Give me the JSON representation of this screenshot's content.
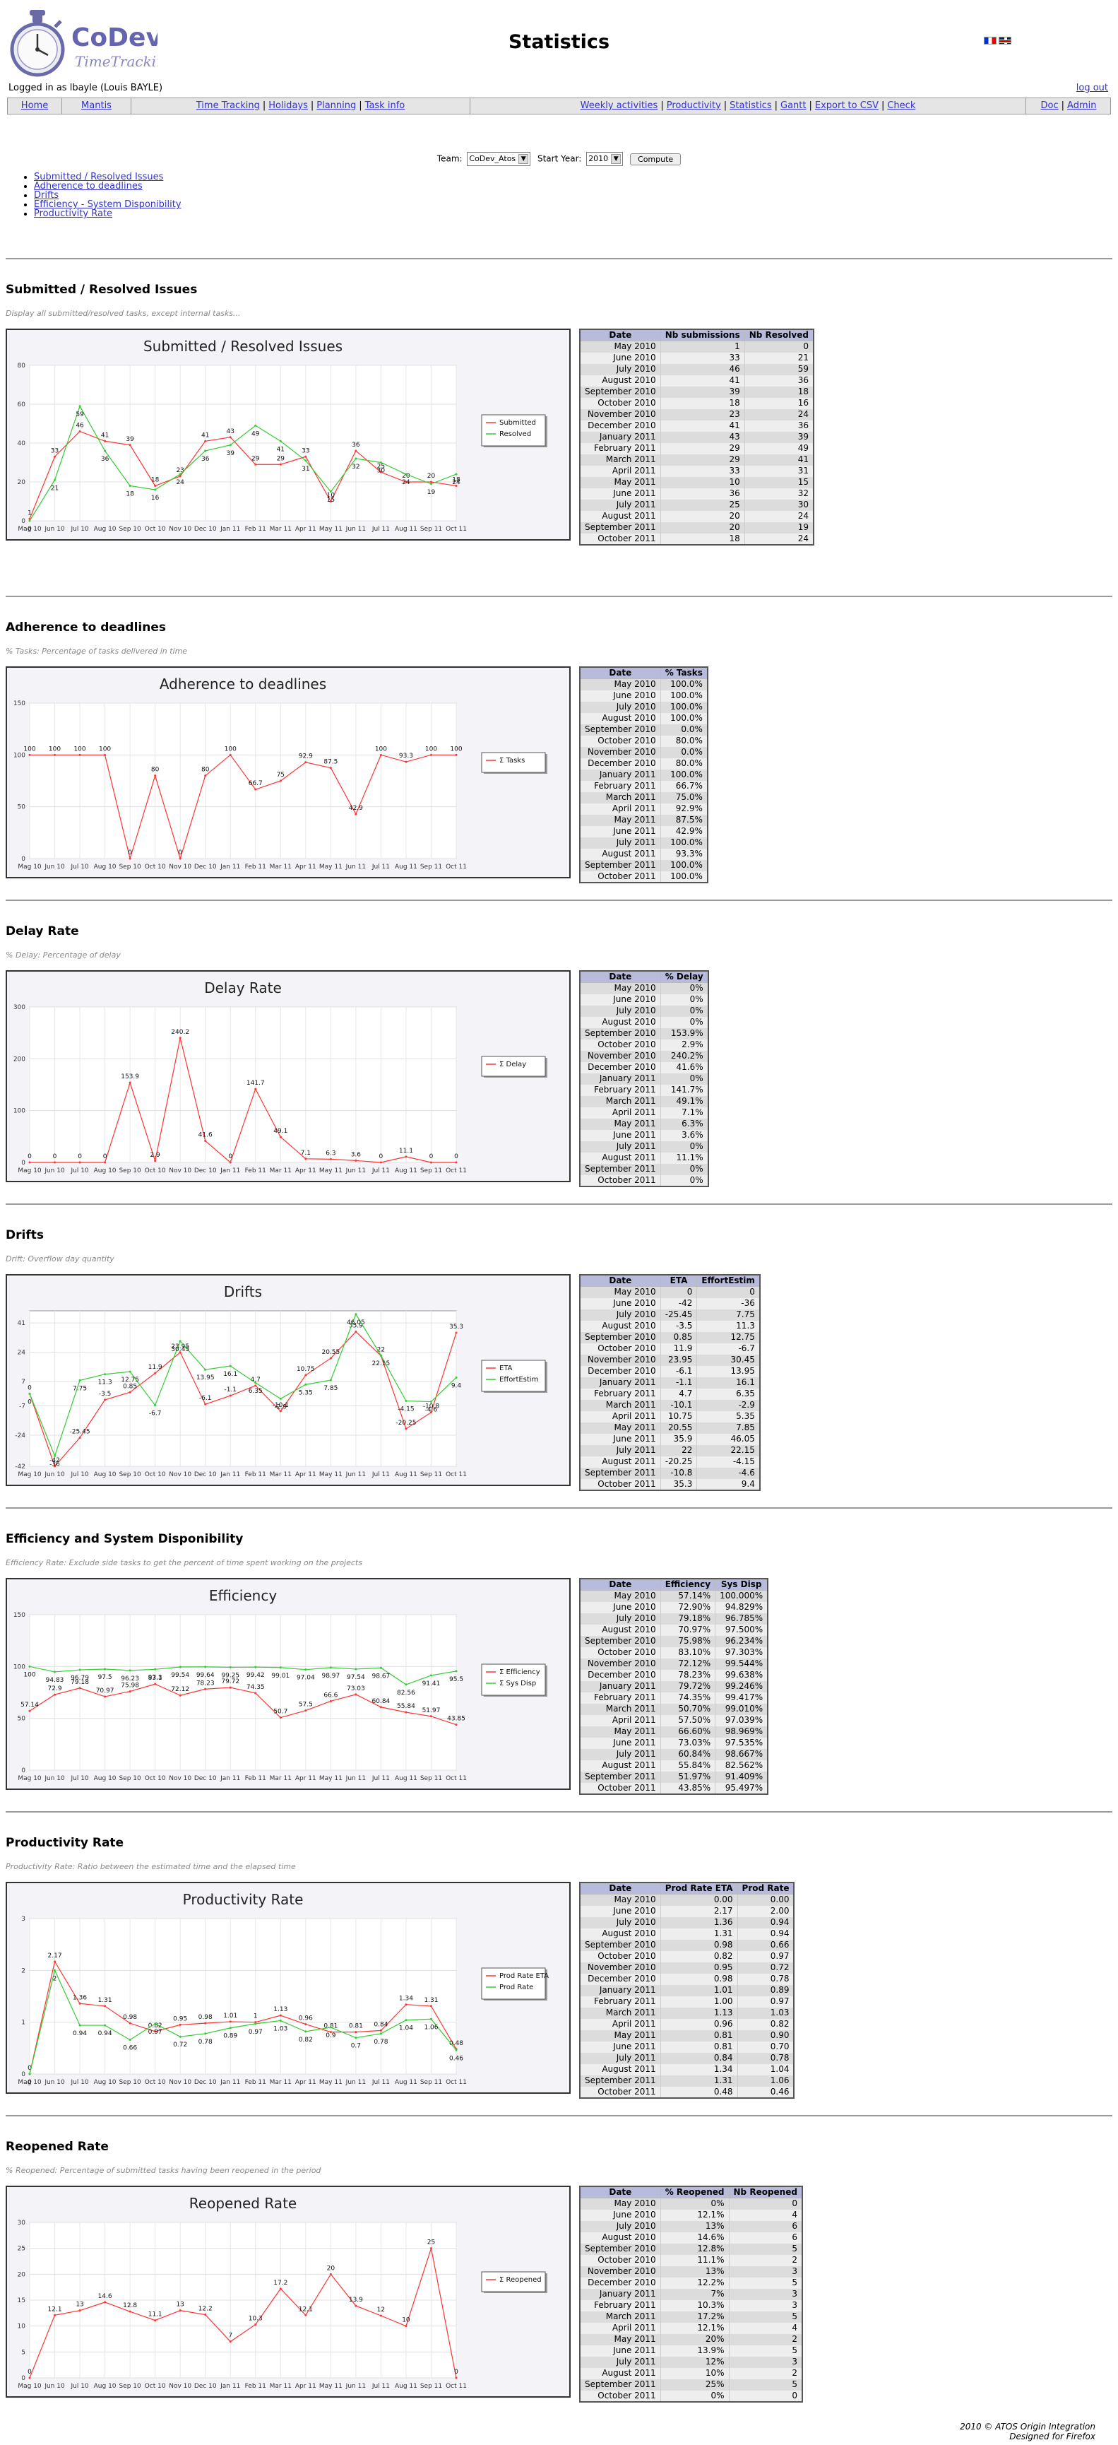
{
  "app": {
    "logo_name": "CoDev",
    "logo_sub": "TimeTracking",
    "page_title": "Statistics",
    "login_info": "Logged in as lbayle (Louis BAYLE)",
    "logout": "log out"
  },
  "menu": {
    "group1": [
      "Home"
    ],
    "group2": [
      "Mantis"
    ],
    "group3": [
      "Time Tracking",
      "Holidays",
      "Planning",
      "Task info"
    ],
    "group4": [
      "Weekly activities",
      "Productivity",
      "Statistics",
      "Gantt",
      "Export to CSV",
      "Check"
    ],
    "group5": [
      "Doc",
      "Admin"
    ]
  },
  "form": {
    "team_label": "Team:",
    "team_value": "CoDev_Atos",
    "year_label": "Start Year:",
    "year_value": "2010",
    "compute": "Compute"
  },
  "toc": [
    "Submitted / Resolved Issues",
    "Adherence to deadlines",
    "Drifts",
    "Efficiency - System Disponibility",
    "Productivity Rate"
  ],
  "months": [
    "Mag 10",
    "Jun 10",
    "Jul 10",
    "Aug 10",
    "Sep 10",
    "Oct 10",
    "Nov 10",
    "Dec 10",
    "Jan 11",
    "Feb 11",
    "Mar 11",
    "Apr 11",
    "May 11",
    "Jun 11",
    "Jul 11",
    "Aug 11",
    "Sep 11",
    "Oct 11"
  ],
  "dates": [
    "May 2010",
    "June 2010",
    "July 2010",
    "August 2010",
    "September 2010",
    "October 2010",
    "November 2010",
    "December 2010",
    "January 2011",
    "February 2011",
    "March 2011",
    "April 2011",
    "May 2011",
    "June 2011",
    "July 2011",
    "August 2011",
    "September 2011",
    "October 2011"
  ],
  "sections": [
    {
      "title": "Submitted / Resolved Issues",
      "desc": "Display all submitted/resolved tasks, except internal tasks...",
      "col_headers": [
        "Date",
        "Nb submissions",
        "Nb Resolved"
      ],
      "rows": [
        [
          "1",
          "0"
        ],
        [
          "33",
          "21"
        ],
        [
          "46",
          "59"
        ],
        [
          "41",
          "36"
        ],
        [
          "39",
          "18"
        ],
        [
          "18",
          "16"
        ],
        [
          "23",
          "24"
        ],
        [
          "41",
          "36"
        ],
        [
          "43",
          "39"
        ],
        [
          "29",
          "49"
        ],
        [
          "29",
          "41"
        ],
        [
          "33",
          "31"
        ],
        [
          "10",
          "15"
        ],
        [
          "36",
          "32"
        ],
        [
          "25",
          "30"
        ],
        [
          "20",
          "24"
        ],
        [
          "20",
          "19"
        ],
        [
          "18",
          "24"
        ]
      ]
    },
    {
      "title": "Adherence to deadlines",
      "desc": "% Tasks: Percentage of tasks delivered in time",
      "col_headers": [
        "Date",
        "% Tasks"
      ],
      "rows": [
        [
          "100.0%"
        ],
        [
          "100.0%"
        ],
        [
          "100.0%"
        ],
        [
          "100.0%"
        ],
        [
          "0.0%"
        ],
        [
          "80.0%"
        ],
        [
          "0.0%"
        ],
        [
          "80.0%"
        ],
        [
          "100.0%"
        ],
        [
          "66.7%"
        ],
        [
          "75.0%"
        ],
        [
          "92.9%"
        ],
        [
          "87.5%"
        ],
        [
          "42.9%"
        ],
        [
          "100.0%"
        ],
        [
          "93.3%"
        ],
        [
          "100.0%"
        ],
        [
          "100.0%"
        ]
      ]
    },
    {
      "title": "Delay Rate",
      "desc": "% Delay: Percentage of delay",
      "col_headers": [
        "Date",
        "% Delay"
      ],
      "rows": [
        [
          "0%"
        ],
        [
          "0%"
        ],
        [
          "0%"
        ],
        [
          "0%"
        ],
        [
          "153.9%"
        ],
        [
          "2.9%"
        ],
        [
          "240.2%"
        ],
        [
          "41.6%"
        ],
        [
          "0%"
        ],
        [
          "141.7%"
        ],
        [
          "49.1%"
        ],
        [
          "7.1%"
        ],
        [
          "6.3%"
        ],
        [
          "3.6%"
        ],
        [
          "0%"
        ],
        [
          "11.1%"
        ],
        [
          "0%"
        ],
        [
          "0%"
        ]
      ]
    },
    {
      "title": "Drifts",
      "desc": "Drift: Overflow day quantity",
      "col_headers": [
        "Date",
        "ETA",
        "EffortEstim"
      ],
      "rows": [
        [
          "0",
          "0"
        ],
        [
          "-42",
          "-36"
        ],
        [
          "-25.45",
          "7.75"
        ],
        [
          "-3.5",
          "11.3"
        ],
        [
          "0.85",
          "12.75"
        ],
        [
          "11.9",
          "-6.7"
        ],
        [
          "23.95",
          "30.45"
        ],
        [
          "-6.1",
          "13.95"
        ],
        [
          "-1.1",
          "16.1"
        ],
        [
          "4.7",
          "6.35"
        ],
        [
          "-10.1",
          "-2.9"
        ],
        [
          "10.75",
          "5.35"
        ],
        [
          "20.55",
          "7.85"
        ],
        [
          "35.9",
          "46.05"
        ],
        [
          "22",
          "22.15"
        ],
        [
          "-20.25",
          "-4.15"
        ],
        [
          "-10.8",
          "-4.6"
        ],
        [
          "35.3",
          "9.4"
        ]
      ]
    },
    {
      "title": "Efficiency and System Disponibility",
      "desc": "Efficiency Rate: Exclude side tasks to get the percent of time spent working on the projects",
      "col_headers": [
        "Date",
        "Efficiency",
        "Sys Disp"
      ],
      "rows": [
        [
          "57.14%",
          "100.000%"
        ],
        [
          "72.90%",
          "94.829%"
        ],
        [
          "79.18%",
          "96.785%"
        ],
        [
          "70.97%",
          "97.500%"
        ],
        [
          "75.98%",
          "96.234%"
        ],
        [
          "83.10%",
          "97.303%"
        ],
        [
          "72.12%",
          "99.544%"
        ],
        [
          "78.23%",
          "99.638%"
        ],
        [
          "79.72%",
          "99.246%"
        ],
        [
          "74.35%",
          "99.417%"
        ],
        [
          "50.70%",
          "99.010%"
        ],
        [
          "57.50%",
          "97.039%"
        ],
        [
          "66.60%",
          "98.969%"
        ],
        [
          "73.03%",
          "97.535%"
        ],
        [
          "60.84%",
          "98.667%"
        ],
        [
          "55.84%",
          "82.562%"
        ],
        [
          "51.97%",
          "91.409%"
        ],
        [
          "43.85%",
          "95.497%"
        ]
      ]
    },
    {
      "title": "Productivity Rate",
      "desc": "Productivity Rate: Ratio between the estimated time and the elapsed time",
      "col_headers": [
        "Date",
        "Prod Rate ETA",
        "Prod Rate"
      ],
      "rows": [
        [
          "0.00",
          "0.00"
        ],
        [
          "2.17",
          "2.00"
        ],
        [
          "1.36",
          "0.94"
        ],
        [
          "1.31",
          "0.94"
        ],
        [
          "0.98",
          "0.66"
        ],
        [
          "0.82",
          "0.97"
        ],
        [
          "0.95",
          "0.72"
        ],
        [
          "0.98",
          "0.78"
        ],
        [
          "1.01",
          "0.89"
        ],
        [
          "1.00",
          "0.97"
        ],
        [
          "1.13",
          "1.03"
        ],
        [
          "0.96",
          "0.82"
        ],
        [
          "0.81",
          "0.90"
        ],
        [
          "0.81",
          "0.70"
        ],
        [
          "0.84",
          "0.78"
        ],
        [
          "1.34",
          "1.04"
        ],
        [
          "1.31",
          "1.06"
        ],
        [
          "0.48",
          "0.46"
        ]
      ]
    },
    {
      "title": "Reopened Rate",
      "desc": "% Reopened: Percentage of submitted tasks having been reopened in the period",
      "col_headers": [
        "Date",
        "% Reopened",
        "Nb Reopened"
      ],
      "rows": [
        [
          "0%",
          "0"
        ],
        [
          "12.1%",
          "4"
        ],
        [
          "13%",
          "6"
        ],
        [
          "14.6%",
          "6"
        ],
        [
          "12.8%",
          "5"
        ],
        [
          "11.1%",
          "2"
        ],
        [
          "13%",
          "3"
        ],
        [
          "12.2%",
          "5"
        ],
        [
          "7%",
          "3"
        ],
        [
          "10.3%",
          "3"
        ],
        [
          "17.2%",
          "5"
        ],
        [
          "12.1%",
          "4"
        ],
        [
          "20%",
          "2"
        ],
        [
          "13.9%",
          "5"
        ],
        [
          "12%",
          "3"
        ],
        [
          "10%",
          "2"
        ],
        [
          "25%",
          "5"
        ],
        [
          "0%",
          "0"
        ]
      ]
    }
  ],
  "chart_data": [
    {
      "type": "line",
      "title": "Submitted / Resolved Issues",
      "categories": [
        "Mag 10",
        "Jun 10",
        "Jul 10",
        "Aug 10",
        "Sep 10",
        "Oct 10",
        "Nov 10",
        "Dec 10",
        "Jan 11",
        "Feb 11",
        "Mar 11",
        "Apr 11",
        "May 11",
        "Jun 11",
        "Jul 11",
        "Aug 11",
        "Sep 11",
        "Oct 11"
      ],
      "ylim": [
        0,
        80
      ],
      "yticks": [
        0,
        20,
        40,
        60,
        80
      ],
      "legend": "right",
      "series": [
        {
          "name": "Submitted",
          "color": "#ff3333",
          "values": [
            1,
            33,
            46,
            41,
            39,
            18,
            23,
            41,
            43,
            29,
            29,
            33,
            10,
            36,
            25,
            20,
            20,
            18
          ]
        },
        {
          "name": "Resolved",
          "color": "#33cc33",
          "values": [
            0,
            21,
            59,
            36,
            18,
            16,
            24,
            36,
            39,
            49,
            41,
            31,
            15,
            32,
            30,
            24,
            19,
            24
          ]
        }
      ]
    },
    {
      "type": "line",
      "title": "Adherence to deadlines",
      "categories": [
        "Mag 10",
        "Jun 10",
        "Jul 10",
        "Aug 10",
        "Sep 10",
        "Oct 10",
        "Nov 10",
        "Dec 10",
        "Jan 11",
        "Feb 11",
        "Mar 11",
        "Apr 11",
        "May 11",
        "Jun 11",
        "Jul 11",
        "Aug 11",
        "Sep 11",
        "Oct 11"
      ],
      "ylim": [
        0,
        150
      ],
      "yticks": [
        0,
        50,
        100,
        150
      ],
      "legend": "right",
      "series": [
        {
          "name": "Σ Tasks",
          "color": "#ff3333",
          "values": [
            100.0,
            100.0,
            100.0,
            100.0,
            0.0,
            80.0,
            0.0,
            80.0,
            100.0,
            66.7,
            75.0,
            92.9,
            87.5,
            42.9,
            100.0,
            93.3,
            100.0,
            100.0
          ]
        }
      ]
    },
    {
      "type": "line",
      "title": "Delay Rate",
      "categories": [
        "Mag 10",
        "Jun 10",
        "Jul 10",
        "Aug 10",
        "Sep 10",
        "Oct 10",
        "Nov 10",
        "Dec 10",
        "Jan 11",
        "Feb 11",
        "Mar 11",
        "Apr 11",
        "May 11",
        "Jun 11",
        "Jul 11",
        "Aug 11",
        "Sep 11",
        "Oct 11"
      ],
      "ylim": [
        0,
        300
      ],
      "yticks": [
        0,
        100,
        200,
        300
      ],
      "legend": "right",
      "series": [
        {
          "name": "Σ Delay",
          "color": "#ff3333",
          "values": [
            0,
            0,
            0,
            0,
            153.9,
            2.9,
            240.2,
            41.6,
            0,
            141.7,
            49.1,
            7.1,
            6.3,
            3.6,
            0,
            11.1,
            0,
            0
          ]
        }
      ]
    },
    {
      "type": "line",
      "title": "Drifts",
      "categories": [
        "Mag 10",
        "Jun 10",
        "Jul 10",
        "Aug 10",
        "Sep 10",
        "Oct 10",
        "Nov 10",
        "Dec 10",
        "Jan 11",
        "Feb 11",
        "Mar 11",
        "Apr 11",
        "May 11",
        "Jun 11",
        "Jul 11",
        "Aug 11",
        "Sep 11",
        "Oct 11"
      ],
      "ylim": [
        -42,
        48
      ],
      "yticks": [
        -42,
        -24,
        -7,
        7,
        24,
        41
      ],
      "legend": "right",
      "series": [
        {
          "name": "ETA",
          "color": "#ff3333",
          "values": [
            0,
            -42,
            -25.45,
            -3.5,
            0.85,
            11.9,
            23.95,
            -6.1,
            -1.1,
            4.7,
            -10.1,
            10.75,
            20.55,
            35.9,
            22,
            -20.25,
            -10.8,
            35.3
          ]
        },
        {
          "name": "EffortEstim",
          "color": "#33cc33",
          "values": [
            0,
            -36,
            7.75,
            11.3,
            12.75,
            -6.7,
            30.45,
            13.95,
            16.1,
            6.35,
            -2.9,
            5.35,
            7.85,
            46.05,
            22.15,
            -4.15,
            -4.6,
            9.4
          ]
        }
      ]
    },
    {
      "type": "line",
      "title": "Efficiency",
      "categories": [
        "Mag 10",
        "Jun 10",
        "Jul 10",
        "Aug 10",
        "Sep 10",
        "Oct 10",
        "Nov 10",
        "Dec 10",
        "Jan 11",
        "Feb 11",
        "Mar 11",
        "Apr 11",
        "May 11",
        "Jun 11",
        "Jul 11",
        "Aug 11",
        "Sep 11",
        "Oct 11"
      ],
      "ylim": [
        0,
        150
      ],
      "yticks": [
        0,
        50,
        100,
        150
      ],
      "legend": "right",
      "series": [
        {
          "name": "Σ Efficiency",
          "color": "#ff3333",
          "values": [
            57.14,
            72.9,
            79.18,
            70.97,
            75.98,
            83.1,
            72.12,
            78.23,
            79.72,
            74.35,
            50.7,
            57.5,
            66.6,
            73.03,
            60.84,
            55.84,
            51.97,
            43.85
          ]
        },
        {
          "name": "Σ Sys Disp",
          "color": "#33cc33",
          "values": [
            100.0,
            94.83,
            96.79,
            97.5,
            96.23,
            97.3,
            99.54,
            99.64,
            99.25,
            99.42,
            99.01,
            97.04,
            98.97,
            97.54,
            98.67,
            82.56,
            91.41,
            95.5
          ]
        }
      ]
    },
    {
      "type": "line",
      "title": "Productivity Rate",
      "categories": [
        "Mag 10",
        "Jun 10",
        "Jul 10",
        "Aug 10",
        "Sep 10",
        "Oct 10",
        "Nov 10",
        "Dec 10",
        "Jan 11",
        "Feb 11",
        "Mar 11",
        "Apr 11",
        "May 11",
        "Jun 11",
        "Jul 11",
        "Aug 11",
        "Sep 11",
        "Oct 11"
      ],
      "ylim": [
        0,
        3
      ],
      "yticks": [
        0,
        1,
        2,
        3
      ],
      "legend": "right",
      "series": [
        {
          "name": "Prod Rate ETA",
          "color": "#ff3333",
          "values": [
            0.0,
            2.17,
            1.36,
            1.31,
            0.98,
            0.82,
            0.95,
            0.98,
            1.01,
            1.0,
            1.13,
            0.96,
            0.81,
            0.81,
            0.84,
            1.34,
            1.31,
            0.48
          ]
        },
        {
          "name": "Prod Rate",
          "color": "#33cc33",
          "values": [
            0.0,
            2.0,
            0.94,
            0.94,
            0.66,
            0.97,
            0.72,
            0.78,
            0.89,
            0.97,
            1.03,
            0.82,
            0.9,
            0.7,
            0.78,
            1.04,
            1.06,
            0.46
          ]
        }
      ]
    },
    {
      "type": "line",
      "title": "Reopened Rate",
      "categories": [
        "Mag 10",
        "Jun 10",
        "Jul 10",
        "Aug 10",
        "Sep 10",
        "Oct 10",
        "Nov 10",
        "Dec 10",
        "Jan 11",
        "Feb 11",
        "Mar 11",
        "Apr 11",
        "May 11",
        "Jun 11",
        "Jul 11",
        "Aug 11",
        "Sep 11",
        "Oct 11"
      ],
      "ylim": [
        0,
        30
      ],
      "yticks": [
        0,
        5,
        10,
        15,
        20,
        25,
        30
      ],
      "legend": "right",
      "series": [
        {
          "name": "Σ Reopened",
          "color": "#ff3333",
          "values": [
            0,
            12.1,
            13.0,
            14.6,
            12.8,
            11.1,
            13.0,
            12.2,
            7.0,
            10.3,
            17.2,
            12.1,
            20.0,
            13.9,
            12.0,
            10.0,
            25.0,
            0
          ]
        }
      ]
    }
  ],
  "footer": {
    "line1": "2010 © ATOS Origin Integration",
    "line2": "Designed for Firefox"
  }
}
